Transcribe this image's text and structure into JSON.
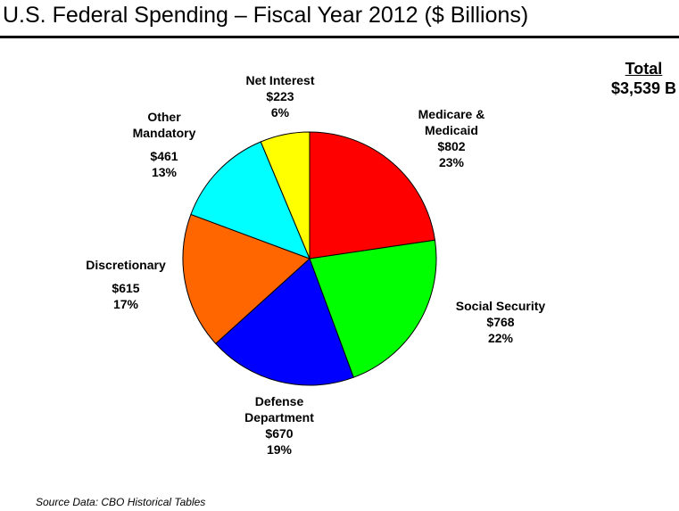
{
  "title": "U.S. Federal Spending – Fiscal Year 2012 ($ Billions)",
  "total": {
    "label": "Total",
    "value": "$3,539 B"
  },
  "source": "Source Data: CBO Historical Tables",
  "colors": {
    "medicare": "#ff0000",
    "social_security": "#00ff00",
    "defense": "#0000ff",
    "discretionary": "#ff6600",
    "other_mandatory": "#00ffff",
    "net_interest": "#ffff00"
  },
  "chart_data": {
    "type": "pie",
    "title": "U.S. Federal Spending – Fiscal Year 2012 ($ Billions)",
    "slices": [
      {
        "key": "medicare",
        "name_lines": [
          "Medicare &",
          "Medicaid"
        ],
        "amount": "$802",
        "pct": "23%",
        "value": 802
      },
      {
        "key": "social_security",
        "name_lines": [
          "Social Security"
        ],
        "amount": "$768",
        "pct": "22%",
        "value": 768
      },
      {
        "key": "defense",
        "name_lines": [
          "Defense",
          "Department"
        ],
        "amount": "$670",
        "pct": "19%",
        "value": 670
      },
      {
        "key": "discretionary",
        "name_lines": [
          "Discretionary"
        ],
        "amount": "$615",
        "pct": "17%",
        "value": 615
      },
      {
        "key": "other_mandatory",
        "name_lines": [
          "Other",
          "Mandatory"
        ],
        "amount": "$461",
        "pct": "13%",
        "value": 461
      },
      {
        "key": "net_interest",
        "name_lines": [
          "Net Interest"
        ],
        "amount": "$223",
        "pct": "6%",
        "value": 223
      }
    ]
  }
}
